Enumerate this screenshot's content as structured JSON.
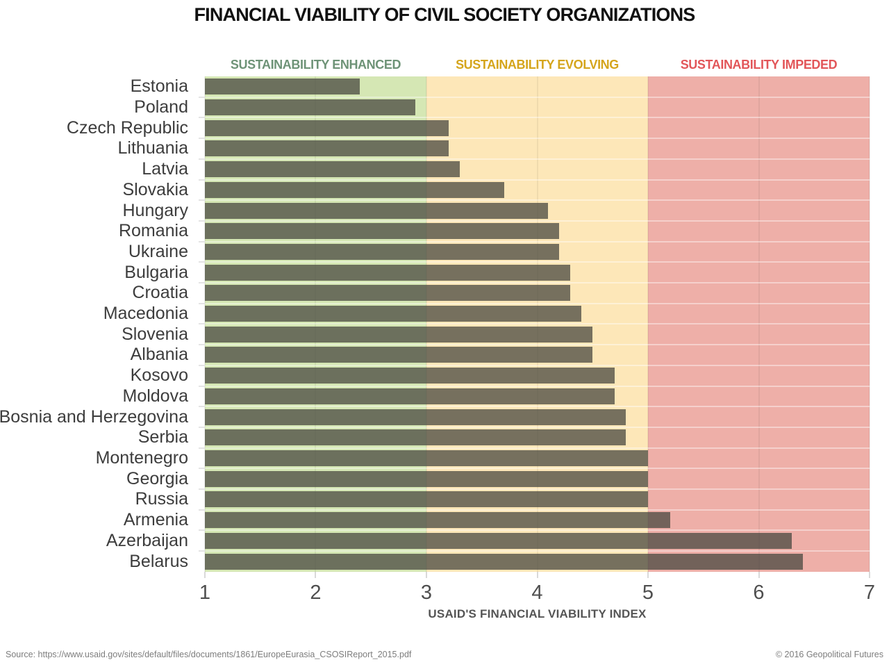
{
  "title": "FINANCIAL VIABILITY OF CIVIL SOCIETY ORGANIZATIONS",
  "zones": [
    {
      "label": "SUSTAINABILITY ENHANCED",
      "range": [
        1,
        3
      ],
      "bg_color": "#d5e7b4",
      "label_color": "#6e9377"
    },
    {
      "label": "SUSTAINABILITY EVOLVING",
      "range": [
        3,
        5
      ],
      "bg_color": "#fde7b8",
      "label_color": "#d5a51c"
    },
    {
      "label": "SUSTAINABILITY IMPEDED",
      "range": [
        5,
        7
      ],
      "bg_color": "#eeafa8",
      "label_color": "#e25659"
    }
  ],
  "chart_data": {
    "type": "bar",
    "orientation": "horizontal",
    "title": "FINANCIAL VIABILITY OF CIVIL SOCIETY ORGANIZATIONS",
    "xlabel": "USAID'S FINANCIAL VIABILITY INDEX",
    "ylabel": "",
    "xlim": [
      1,
      7
    ],
    "xticks": [
      1,
      2,
      3,
      4,
      5,
      6,
      7
    ],
    "grid": true,
    "legend": false,
    "bar_color": "rgba(72,72,64,0.75)",
    "categories": [
      "Estonia",
      "Poland",
      "Czech Republic",
      "Lithuania",
      "Latvia",
      "Slovakia",
      "Hungary",
      "Romania",
      "Ukraine",
      "Bulgaria",
      "Croatia",
      "Macedonia",
      "Slovenia",
      "Albania",
      "Kosovo",
      "Moldova",
      "Bosnia and Herzegovina",
      "Serbia",
      "Montenegro",
      "Georgia",
      "Russia",
      "Armenia",
      "Azerbaijan",
      "Belarus"
    ],
    "values": [
      2.4,
      2.9,
      3.2,
      3.2,
      3.3,
      3.7,
      4.1,
      4.2,
      4.2,
      4.3,
      4.3,
      4.4,
      4.5,
      4.5,
      4.7,
      4.7,
      4.8,
      4.8,
      5.0,
      5.0,
      5.0,
      5.2,
      6.3,
      6.4
    ]
  },
  "axis": {
    "label": "USAID'S FINANCIAL VIABILITY INDEX"
  },
  "footer": {
    "source": "Source: https://www.usaid.gov/sites/default/files/documents/1861/EuropeEurasia_CSOSIReport_2015.pdf",
    "copyright": "© 2016 Geopolitical Futures"
  }
}
